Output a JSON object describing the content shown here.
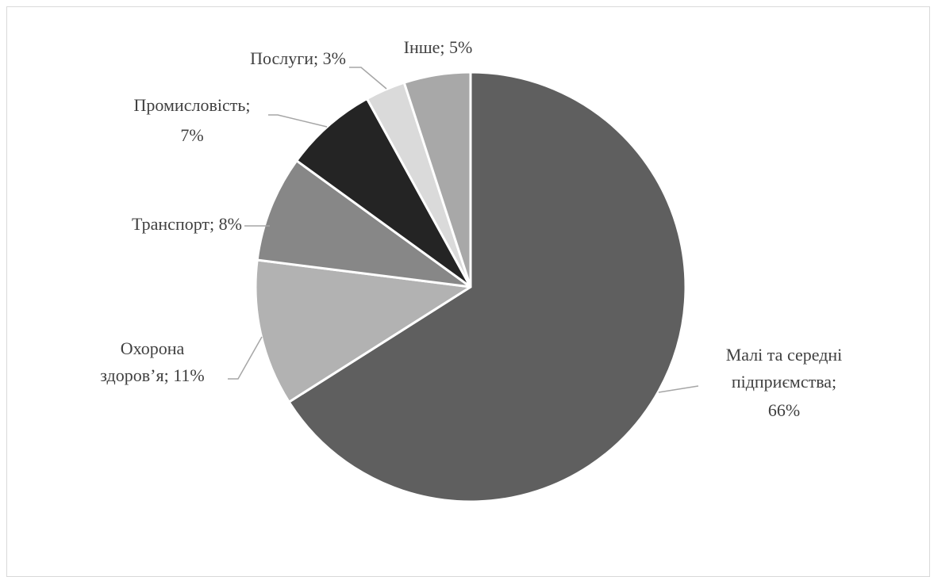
{
  "chart_data": {
    "type": "pie",
    "slices": [
      {
        "label": "Малі та середні підприємства",
        "value": 66,
        "display": "66%",
        "color": "#5f5f5f"
      },
      {
        "label": "Охорона здоров’я",
        "value": 11,
        "display": "11%",
        "color": "#b2b2b2"
      },
      {
        "label": "Транспорт",
        "value": 8,
        "display": "8%",
        "color": "#878787"
      },
      {
        "label": "Промисловість",
        "value": 7,
        "display": "7%",
        "color": "#242424"
      },
      {
        "label": "Послуги",
        "value": 3,
        "display": "3%",
        "color": "#dadada"
      },
      {
        "label": "Інше",
        "value": 5,
        "display": "5%",
        "color": "#a8a8a8"
      }
    ],
    "label_text": {
      "mse": [
        "Малі та середні",
        "підприємства;",
        "66%"
      ],
      "health": [
        "Охорона",
        "здоров’я; 11%"
      ],
      "transport": [
        "Транспорт; 8%"
      ],
      "industry": [
        "Промисловість;",
        "7%"
      ],
      "services": [
        "Послуги; 3%"
      ],
      "other": [
        "Інше; 5%"
      ]
    }
  }
}
